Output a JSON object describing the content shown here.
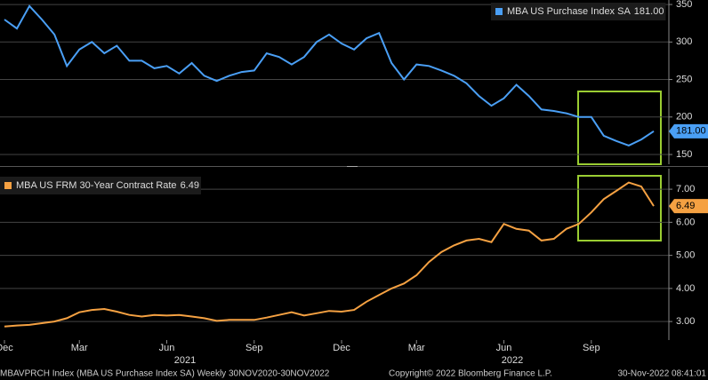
{
  "chart_data": [
    {
      "type": "line",
      "legend": "upper right",
      "grid": true,
      "ylim": [
        137,
        356
      ],
      "yticks": [
        150,
        200,
        250,
        300,
        350
      ],
      "series": [
        {
          "name": "MBA US Purchase Index SA",
          "color": "#4a9ff5",
          "last_label": "181.00",
          "values": [
            330,
            318,
            348,
            330,
            310,
            268,
            290,
            300,
            285,
            295,
            275,
            275,
            265,
            268,
            258,
            272,
            255,
            248,
            255,
            260,
            262,
            285,
            280,
            270,
            280,
            300,
            310,
            298,
            290,
            305,
            312,
            272,
            250,
            270,
            268,
            262,
            255,
            245,
            228,
            215,
            225,
            243,
            228,
            210,
            208,
            205,
            200,
            200,
            175,
            168,
            162,
            170,
            181
          ]
        }
      ]
    },
    {
      "type": "line",
      "legend": "upper left",
      "grid": true,
      "ylim": [
        2.44,
        7.62
      ],
      "yticks": [
        {
          "value": 3,
          "label": "3.00"
        },
        {
          "value": 4,
          "label": "4.00"
        },
        {
          "value": 5,
          "label": "5.00"
        },
        {
          "value": 6,
          "label": "6.00"
        },
        {
          "value": 7,
          "label": "7.00"
        }
      ],
      "categories": [
        "Dec",
        null,
        null,
        null,
        null,
        null,
        "Mar",
        null,
        null,
        null,
        null,
        null,
        null,
        "Jun",
        null,
        null,
        null,
        null,
        null,
        null,
        "Sep",
        null,
        null,
        null,
        null,
        null,
        null,
        "Dec",
        null,
        null,
        null,
        null,
        null,
        "Mar",
        null,
        null,
        null,
        null,
        null,
        null,
        "Jun",
        null,
        null,
        null,
        null,
        null,
        null,
        "Sep",
        null,
        null,
        null,
        null,
        null
      ],
      "year_labels": [
        "2021",
        "2022"
      ],
      "series": [
        {
          "name": "MBA US FRM 30-Year Contract Rate",
          "color": "#f5a142",
          "last_label": "6.49",
          "values": [
            2.85,
            2.88,
            2.9,
            2.95,
            3.0,
            3.1,
            3.28,
            3.35,
            3.38,
            3.3,
            3.2,
            3.15,
            3.2,
            3.18,
            3.2,
            3.15,
            3.1,
            3.02,
            3.05,
            3.05,
            3.05,
            3.12,
            3.2,
            3.28,
            3.18,
            3.25,
            3.32,
            3.3,
            3.35,
            3.6,
            3.8,
            4.0,
            4.15,
            4.4,
            4.8,
            5.1,
            5.3,
            5.45,
            5.5,
            5.4,
            5.95,
            5.8,
            5.75,
            5.45,
            5.5,
            5.8,
            5.95,
            6.3,
            6.7,
            6.95,
            7.2,
            7.08,
            6.49
          ]
        }
      ]
    }
  ],
  "footer": {
    "left": "MBAVPRCH Index (MBA US Purchase Index SA)  Weekly 30NOV2020-30NOV2022",
    "center": "Copyright© 2022 Bloomberg Finance L.P.",
    "right": "30-Nov-2022 08:41:01"
  }
}
